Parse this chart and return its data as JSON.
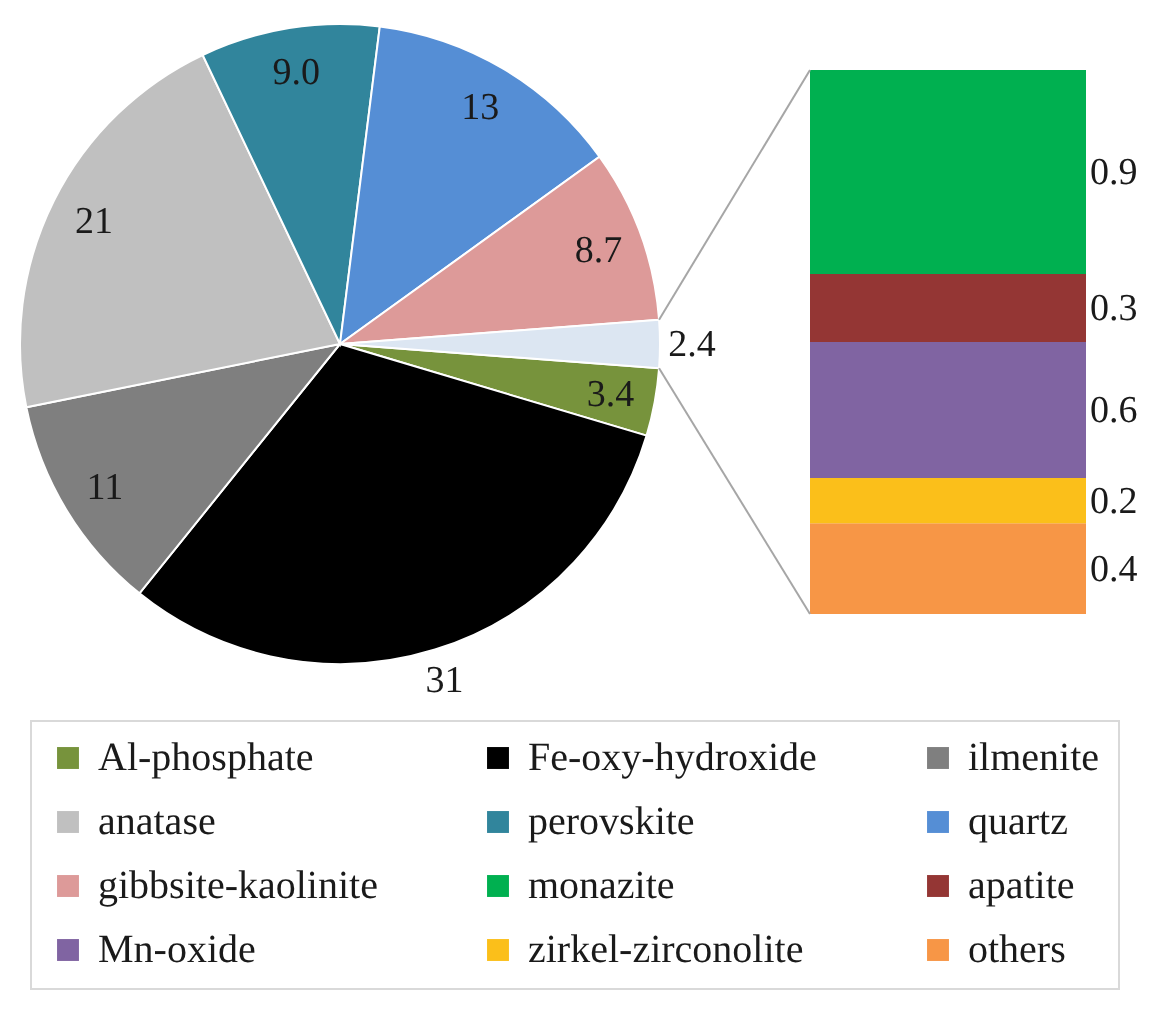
{
  "chart_data": [
    {
      "type": "pie",
      "categories": [
        "Al-phosphate",
        "Fe-oxy-hydroxide",
        "ilmenite",
        "anatase",
        "perovskite",
        "quartz",
        "gibbsite-kaolinite",
        null
      ],
      "values": [
        3.4,
        31,
        11,
        21,
        9.0,
        13,
        8.7,
        2.4
      ],
      "value_labels": [
        "3.4",
        "31",
        "11",
        "21",
        "9.0",
        "13",
        "8.7",
        "2.4"
      ],
      "colors": [
        "#77933c",
        "#000000",
        "#7f7f7f",
        "#c0c0c0",
        "#31859c",
        "#558ed5",
        "#dd9a99",
        "#dce6f2"
      ],
      "legend": "bottom"
    },
    {
      "type": "bar",
      "stacked": true,
      "categories": [
        null
      ],
      "series": [
        {
          "name": "others",
          "color": "#f79646",
          "values": [
            0.4
          ]
        },
        {
          "name": "zirkel-zirconolite",
          "color": "#fbbf1a",
          "values": [
            0.2
          ]
        },
        {
          "name": "Mn-oxide",
          "color": "#8064a2",
          "values": [
            0.6
          ]
        },
        {
          "name": "apatite",
          "color": "#943634",
          "values": [
            0.3
          ]
        },
        {
          "name": "monazite",
          "color": "#00b050",
          "values": [
            0.9
          ]
        }
      ],
      "data_labels": true,
      "legend": "bottom"
    }
  ]
}
